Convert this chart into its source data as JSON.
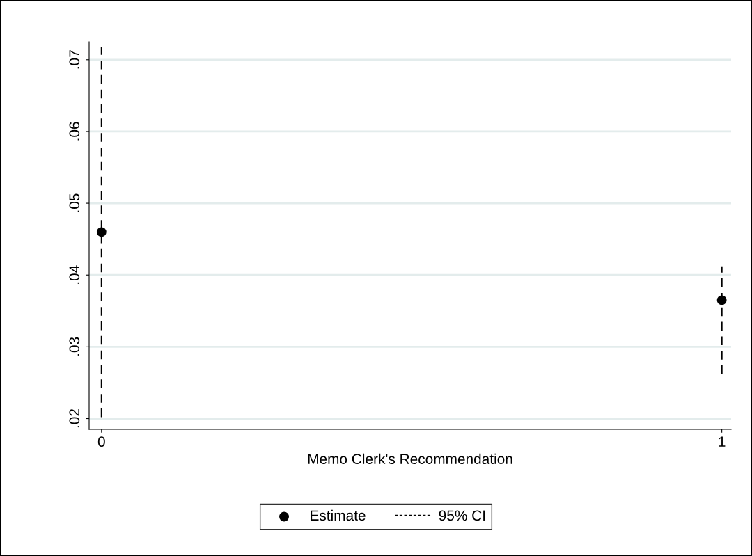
{
  "chart_data": {
    "type": "scatter",
    "xlabel": "Memo Clerk's Recommendation",
    "x": [
      0,
      1
    ],
    "series": [
      {
        "name": "Estimate",
        "color": "#000000",
        "values": [
          0.046,
          0.0365
        ],
        "errors": [
          [
            0.0202,
            0.0718
          ],
          [
            0.0262,
            0.0412
          ]
        ]
      }
    ],
    "annotations": [
      "95% CI"
    ],
    "xlim": [
      -0.02,
      1.015
    ],
    "xticks": [
      0,
      1
    ],
    "ylim": [
      0.0185,
      0.0725
    ],
    "yticks": [
      {
        "value": 0.02,
        "label": ".02"
      },
      {
        "value": 0.03,
        "label": ".03"
      },
      {
        "value": 0.04,
        "label": ".04"
      },
      {
        "value": 0.05,
        "label": ".05"
      },
      {
        "value": 0.06,
        "label": ".06"
      },
      {
        "value": 0.07,
        "label": ".07"
      }
    ],
    "grid": "y",
    "legend": "bottom",
    "marker": "circle",
    "line_style": "dashed"
  }
}
